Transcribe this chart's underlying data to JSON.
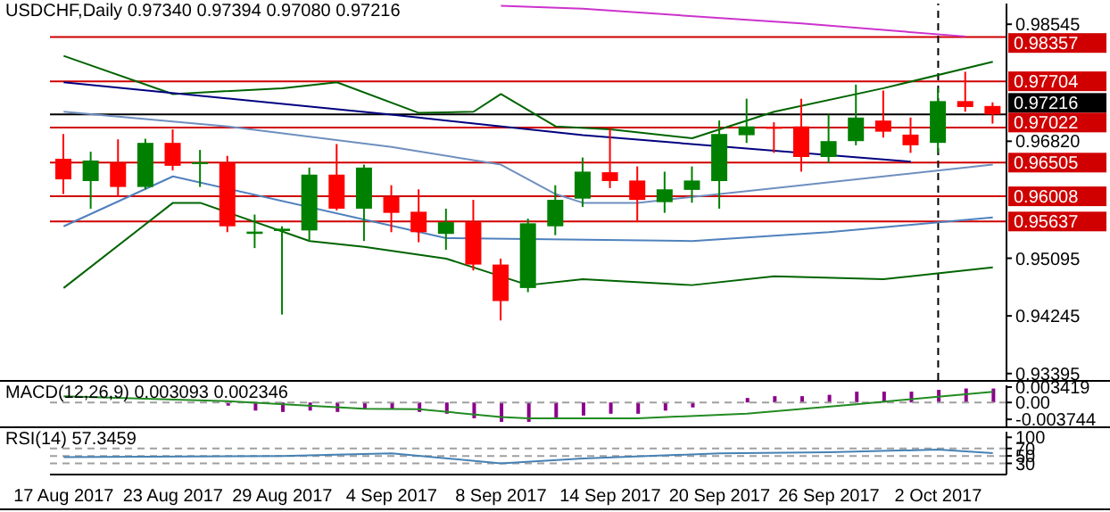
{
  "chart_data": [
    {
      "type": "candlestick",
      "title": "USDCHF,Daily 0.97340 0.97394 0.97080 0.97216",
      "categories": [
        "17 Aug 2017",
        null,
        null,
        null,
        "23 Aug 2017",
        null,
        null,
        null,
        "29 Aug 2017",
        null,
        null,
        null,
        "4 Sep 2017",
        null,
        null,
        null,
        "8 Sep 2017",
        null,
        null,
        null,
        "14 Sep 2017",
        null,
        null,
        null,
        "20 Sep 2017",
        null,
        null,
        null,
        "26 Sep 2017",
        null,
        null,
        null,
        "2 Oct 2017",
        null,
        null
      ],
      "ohlc": [
        [
          0.96562,
          0.96926,
          0.96042,
          0.96258
        ],
        [
          0.96233,
          0.96666,
          0.95825,
          0.96536
        ],
        [
          0.96501,
          0.96848,
          0.95998,
          0.96146
        ],
        [
          0.96146,
          0.96857,
          0.96111,
          0.96796
        ],
        [
          0.96796,
          0.96995,
          0.96389,
          0.96458
        ],
        [
          0.96493,
          0.96692,
          0.96146,
          0.9651
        ],
        [
          0.96501,
          0.96605,
          0.95479,
          0.95566
        ],
        [
          0.95454,
          0.95739,
          0.95245,
          0.95488
        ],
        [
          0.95496,
          0.95566,
          0.94265,
          0.95531
        ],
        [
          0.95505,
          0.96432,
          0.95349,
          0.96328
        ],
        [
          0.96328,
          0.96779,
          0.958,
          0.95826
        ],
        [
          0.95826,
          0.96475,
          0.95349,
          0.96432
        ],
        [
          0.95998,
          0.96172,
          0.95479,
          0.95764
        ],
        [
          0.95781,
          0.96111,
          0.95331,
          0.95479
        ],
        [
          0.95454,
          0.95826,
          0.95219,
          0.95627
        ],
        [
          0.95627,
          0.95957,
          0.94915,
          0.95002
        ],
        [
          0.95002,
          0.95089,
          0.94178,
          0.94464
        ],
        [
          0.94656,
          0.95679,
          0.94595,
          0.9561
        ],
        [
          0.95566,
          0.96172,
          0.95435,
          0.95956
        ],
        [
          0.95974,
          0.9658,
          0.95852,
          0.96372
        ],
        [
          0.96363,
          0.97013,
          0.96129,
          0.96233
        ],
        [
          0.96241,
          0.96449,
          0.95627,
          0.95955
        ],
        [
          0.95922,
          0.96371,
          0.95765,
          0.96111
        ],
        [
          0.96103,
          0.96449,
          0.95913,
          0.96241
        ],
        [
          0.96233,
          0.97126,
          0.95826,
          0.96927
        ],
        [
          0.96909,
          0.97447,
          0.96796,
          0.97039
        ],
        [
          0.9703,
          0.971,
          0.96649,
          0.97004
        ],
        [
          0.97039,
          0.97447,
          0.96372,
          0.96588
        ],
        [
          0.96588,
          0.97212,
          0.96501,
          0.96822
        ],
        [
          0.96822,
          0.97655,
          0.96761,
          0.97169
        ],
        [
          0.97125,
          0.97568,
          0.96874,
          0.96961
        ],
        [
          0.96918,
          0.97169,
          0.96649,
          0.96761
        ],
        [
          0.96796,
          0.97603,
          0.96649,
          0.97412
        ],
        [
          0.97412,
          0.97845,
          0.97256,
          0.97325
        ],
        [
          0.9734,
          0.97394,
          0.9708,
          0.97216
        ]
      ],
      "colors": [
        "#ff0000",
        "#008000",
        "#ff0000",
        "#008000",
        "#ff0000",
        "#008000",
        "#ff0000",
        "#008000",
        "#008000",
        "#008000",
        "#ff0000",
        "#008000",
        "#ff0000",
        "#ff0000",
        "#008000",
        "#ff0000",
        "#ff0000",
        "#008000",
        "#008000",
        "#008000",
        "#ff0000",
        "#ff0000",
        "#008000",
        "#008000",
        "#008000",
        "#008000",
        "#ff0000",
        "#ff0000",
        "#008000",
        "#008000",
        "#ff0000",
        "#ff0000",
        "#008000",
        "#ff0000",
        "#ff0000"
      ],
      "series": [
        {
          "type": "line",
          "color": "#cc33cc",
          "values": [
            null,
            null,
            null,
            null,
            null,
            null,
            null,
            null,
            null,
            null,
            null,
            null,
            null,
            null,
            null,
            null,
            0.98816,
            null,
            null,
            0.98773,
            null,
            null,
            null,
            null,
            null,
            null,
            null,
            0.98556,
            null,
            null,
            null,
            null,
            null,
            0.98365,
            null
          ]
        },
        {
          "type": "line",
          "color": "#006400",
          "values": [
            0.98079,
            null,
            null,
            null,
            0.97516,
            null,
            null,
            null,
            0.97602,
            null,
            0.97689,
            null,
            null,
            0.97238,
            null,
            0.97255,
            0.97516,
            null,
            0.97039,
            null,
            0.96995,
            null,
            null,
            0.96865,
            null,
            null,
            0.97255,
            null,
            null,
            null,
            0.97602,
            null,
            null,
            null,
            0.97993
          ]
        },
        {
          "type": "line",
          "color": "#000080",
          "values": [
            0.97689,
            null,
            null,
            null,
            null,
            null,
            null,
            null,
            null,
            null,
            null,
            null,
            0.97212,
            null,
            null,
            null,
            null,
            null,
            null,
            0.96909,
            null,
            null,
            null,
            null,
            null,
            null,
            null,
            null,
            null,
            null,
            null,
            0.96518,
            null,
            null,
            null
          ]
        },
        {
          "type": "line",
          "color": "#6f8fbf",
          "values": [
            0.97255,
            null,
            null,
            null,
            null,
            null,
            0.97039,
            null,
            null,
            null,
            null,
            null,
            0.96735,
            null,
            null,
            null,
            0.96475,
            null,
            0.96042,
            0.95912,
            null,
            0.95912,
            null,
            null,
            null,
            null,
            0.96129,
            null,
            null,
            null,
            0.96302,
            null,
            null,
            null,
            0.96475
          ]
        },
        {
          "type": "line",
          "color": "#4f81bd",
          "values": [
            0.95565,
            null,
            null,
            null,
            0.96302,
            null,
            null,
            null,
            null,
            null,
            null,
            null,
            null,
            null,
            0.95392,
            null,
            null,
            null,
            null,
            null,
            null,
            null,
            null,
            0.95349,
            null,
            null,
            null,
            null,
            0.95479,
            null,
            null,
            null,
            null,
            null,
            0.95696
          ]
        },
        {
          "type": "line",
          "color": "#006400",
          "values": [
            0.94656,
            null,
            null,
            null,
            0.95912,
            0.95912,
            null,
            null,
            null,
            0.95349,
            null,
            0.95262,
            null,
            null,
            0.95089,
            null,
            null,
            0.94699,
            null,
            0.94786,
            null,
            null,
            null,
            0.94699,
            null,
            null,
            0.94829,
            null,
            null,
            null,
            0.94786,
            null,
            null,
            null,
            0.94959
          ]
        }
      ],
      "ylim": [
        0.933,
        0.9885
      ],
      "yticks": [
        0.98545,
        {
          "value": 0.9682,
          "label": "0.96820"
        },
        0.95095,
        0.94245,
        0.93395
      ],
      "ref_lines": [
        {
          "axis": "y",
          "value": 0.98357,
          "label": "0.98357",
          "color": "#d00000"
        },
        {
          "axis": "y",
          "value": 0.97704,
          "label": "0.97704",
          "color": "#d00000"
        },
        {
          "axis": "y",
          "value": 0.97216,
          "label": "0.97216",
          "color": "#000000"
        },
        {
          "axis": "y",
          "value": 0.97022,
          "label": "0.97022",
          "color": "#d00000"
        },
        {
          "axis": "y",
          "value": 0.96505,
          "label": "0.96505",
          "color": "#d00000"
        },
        {
          "axis": "y",
          "value": 0.96008,
          "label": "0.96008",
          "color": "#d00000"
        },
        {
          "axis": "y",
          "value": 0.95637,
          "label": "0.95637",
          "color": "#d00000"
        },
        {
          "axis": "x",
          "value": "2 Oct 2017",
          "color": "#000000",
          "line_style": "dashed"
        }
      ],
      "tick_labels": "y"
    },
    {
      "type": "bar",
      "title": "MACD(12,26,9) 0.003093 0.002346",
      "categories": [
        "17 Aug 2017",
        null,
        null,
        null,
        "23 Aug 2017",
        null,
        null,
        null,
        "29 Aug 2017",
        null,
        null,
        null,
        "4 Sep 2017",
        null,
        null,
        null,
        "8 Sep 2017",
        null,
        null,
        null,
        "14 Sep 2017",
        null,
        null,
        null,
        "20 Sep 2017",
        null,
        null,
        null,
        "26 Sep 2017",
        null,
        null,
        null,
        "2 Oct 2017",
        null,
        null
      ],
      "series": [
        {
          "type": "bar",
          "color": "#8b008b",
          "values": [
            null,
            null,
            null,
            null,
            null,
            null,
            -0.0007,
            -0.0018,
            -0.0021,
            -0.0018,
            -0.0021,
            -0.0015,
            -0.0015,
            -0.0021,
            -0.0025,
            -0.0035,
            -0.0043,
            -0.0043,
            -0.0035,
            -0.0029,
            -0.0025,
            -0.0025,
            -0.0018,
            -0.0011,
            null,
            0.001,
            0.0014,
            0.0014,
            0.0017,
            0.0024,
            0.0024,
            0.0024,
            0.0028,
            0.0031,
            0.003093
          ]
        },
        {
          "type": "line",
          "color": "#228b22",
          "values": [
            0.0014,
            null,
            null,
            null,
            null,
            null,
            0.0003,
            null,
            null,
            null,
            null,
            -0.0014,
            null,
            -0.0015,
            null,
            null,
            -0.0032,
            -0.0035,
            null,
            null,
            null,
            -0.0035,
            null,
            null,
            null,
            -0.0025,
            null,
            null,
            null,
            -0.0004,
            null,
            null,
            0.0013,
            null,
            0.002346
          ]
        }
      ],
      "ylim": [
        -0.0053,
        0.0038
      ],
      "yticks": [
        0.003419,
        {
          "value": 0,
          "label": "0.00"
        },
        -0.003744
      ],
      "ref_lines": [
        {
          "axis": "y",
          "value": 0,
          "color": "#a0a0a0",
          "line_style": "dashed"
        }
      ],
      "tick_labels": "y"
    },
    {
      "type": "line",
      "title": "RSI(14) 57.3459",
      "categories": [
        "17 Aug 2017",
        null,
        null,
        null,
        "23 Aug 2017",
        null,
        null,
        null,
        "29 Aug 2017",
        null,
        null,
        null,
        "4 Sep 2017",
        null,
        null,
        null,
        "8 Sep 2017",
        null,
        null,
        null,
        "14 Sep 2017",
        null,
        null,
        null,
        "20 Sep 2017",
        null,
        null,
        null,
        "26 Sep 2017",
        null,
        null,
        null,
        "2 Oct 2017",
        null,
        null
      ],
      "values": [
        47,
        null,
        null,
        null,
        null,
        null,
        null,
        null,
        50,
        null,
        null,
        null,
        57,
        null,
        null,
        null,
        30,
        null,
        null,
        43,
        null,
        null,
        null,
        null,
        57,
        null,
        null,
        null,
        60,
        null,
        null,
        null,
        67,
        null,
        57.3459
      ],
      "color": "#4682b4",
      "ylim": [
        0,
        115
      ],
      "yticks": [
        100,
        70,
        50,
        30
      ],
      "ref_lines": [
        {
          "axis": "y",
          "value": 70,
          "color": "#a0a0a0",
          "line_style": "dashed"
        },
        {
          "axis": "y",
          "value": 50,
          "color": "#a0a0a0",
          "line_style": "dashed"
        },
        {
          "axis": "y",
          "value": 30,
          "color": "#a0a0a0",
          "line_style": "dashed"
        }
      ]
    }
  ]
}
